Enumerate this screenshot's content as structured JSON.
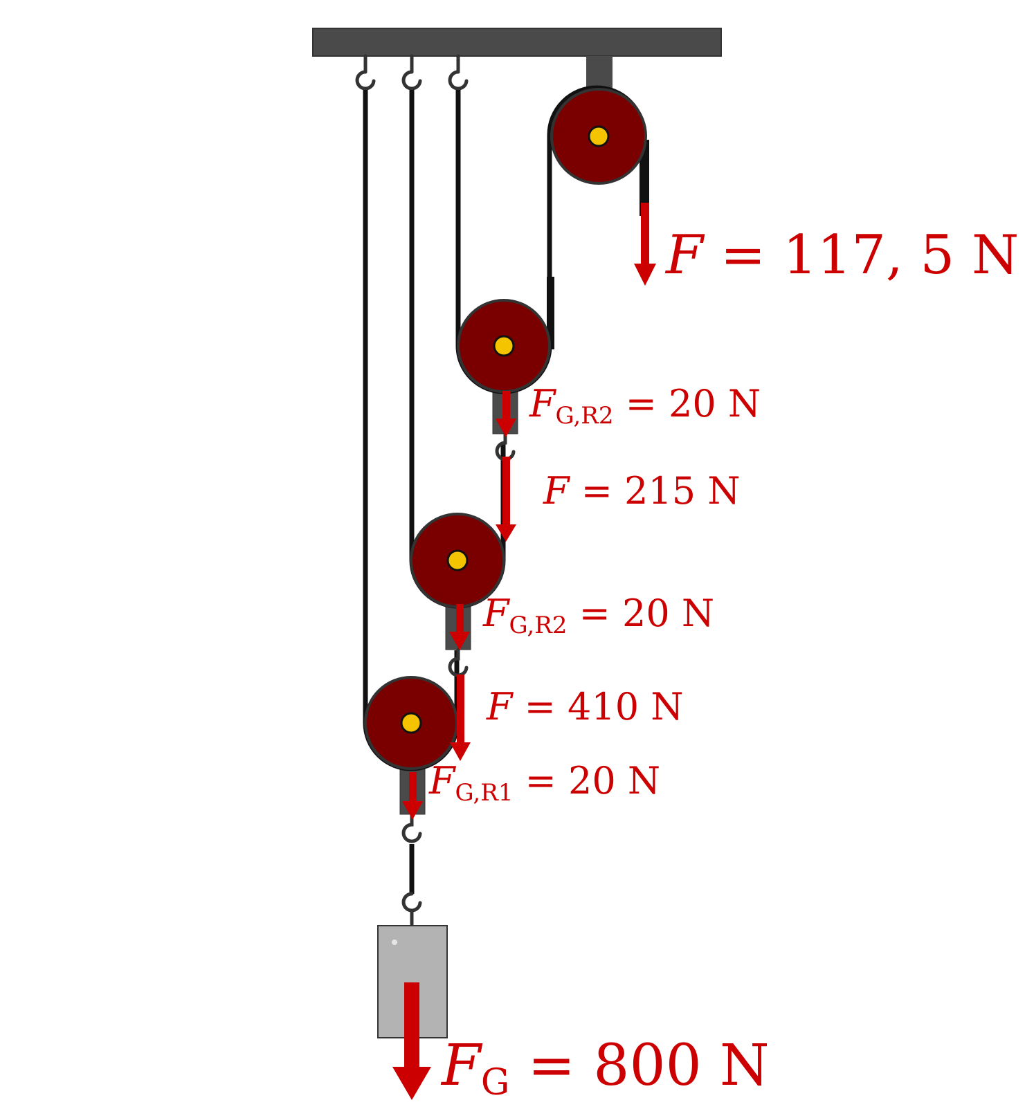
{
  "labels": {
    "force_top": {
      "sym": "F",
      "sub": "",
      "eq": " = ",
      "val": "117, 5",
      "unit": " N"
    },
    "weight_r3": {
      "sym": "F",
      "sub": "G,R2",
      "eq": " = ",
      "val": "20",
      "unit": " N"
    },
    "force_mid": {
      "sym": "F",
      "sub": "",
      "eq": " = ",
      "val": "215",
      "unit": " N"
    },
    "weight_r2": {
      "sym": "F",
      "sub": "G,R2",
      "eq": " = ",
      "val": "20",
      "unit": " N"
    },
    "force_low": {
      "sym": "F",
      "sub": "",
      "eq": " = ",
      "val": "410",
      "unit": " N"
    },
    "weight_r1": {
      "sym": "F",
      "sub": "G,R1",
      "eq": " = ",
      "val": "20",
      "unit": " N"
    },
    "load": {
      "sym": "F",
      "sub": "G",
      "eq": " = ",
      "val": "800",
      "unit": " N"
    }
  },
  "colors": {
    "arrow": "#cc0000",
    "pulley": "#7a0000",
    "axle": "#f5c400",
    "beam": "#4a4a4a",
    "rope": "#111111",
    "weight": "#b3b3b3"
  },
  "icons": {
    "hook": "hook-icon",
    "pulley": "pulley-icon"
  }
}
